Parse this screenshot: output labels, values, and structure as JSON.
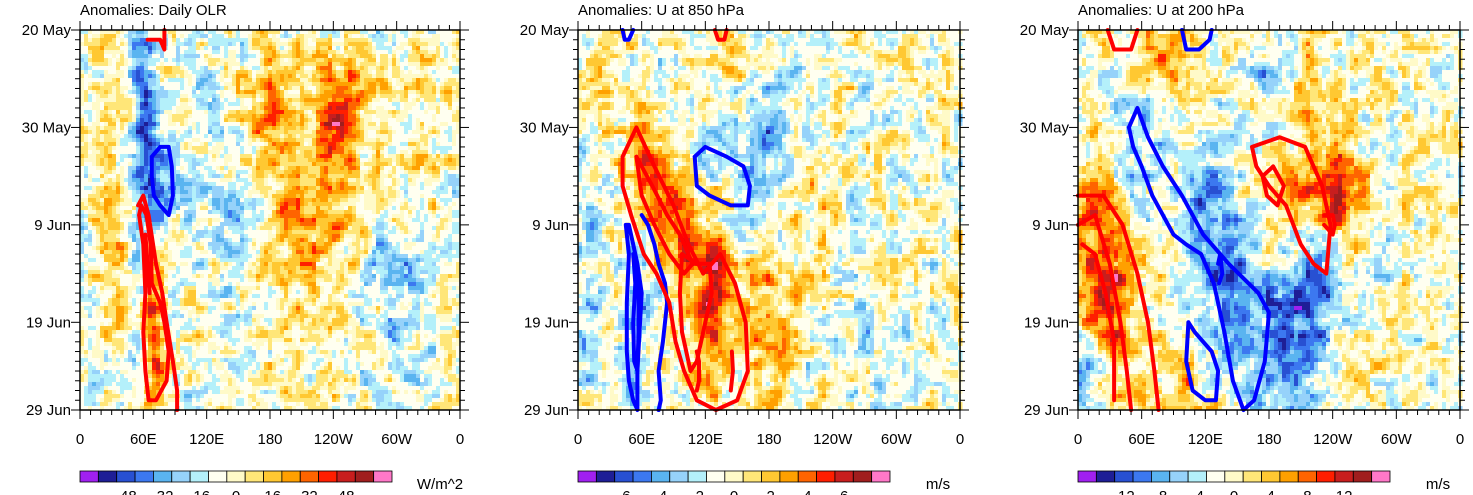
{
  "chart_data": [
    {
      "type": "heatmap",
      "title": "Anomalies: Daily OLR",
      "x_tick_labels": [
        "0",
        "60E",
        "120E",
        "180",
        "120W",
        "60W",
        "0"
      ],
      "y_tick_labels": [
        "20 May",
        "30 May",
        "9 Jun",
        "19 Jun",
        "29 Jun"
      ],
      "y_ticks_day": [
        0,
        10,
        20,
        30,
        39
      ],
      "colorbar": {
        "labels": [
          "-48",
          "-32",
          "-16",
          "0",
          "16",
          "32",
          "48"
        ],
        "units": "W/m^2",
        "max_value": 64
      },
      "contours": [
        {
          "color": "red",
          "points": [
            [
              64,
              1
            ],
            [
              76,
              1
            ],
            [
              80,
              2
            ],
            [
              80,
              0
            ]
          ]
        },
        {
          "color": "red",
          "points": [
            [
              55,
              18
            ],
            [
              60,
              17
            ],
            [
              65,
              19
            ],
            [
              72,
              24
            ],
            [
              78,
              27
            ],
            [
              82,
              30
            ],
            [
              88,
              34
            ],
            [
              92,
              37
            ],
            [
              92,
              39
            ]
          ]
        },
        {
          "color": "red",
          "points": [
            [
              56,
              19
            ],
            [
              60,
              22
            ],
            [
              62,
              27
            ],
            [
              60,
              31
            ],
            [
              62,
              35
            ],
            [
              65,
              38
            ],
            [
              72,
              38
            ],
            [
              82,
              36
            ],
            [
              84,
              33
            ],
            [
              80,
              30
            ],
            [
              76,
              28
            ],
            [
              72,
              27
            ],
            [
              68,
              26
            ],
            [
              67,
              22
            ],
            [
              63,
              19
            ],
            [
              58,
              18
            ],
            [
              56,
              19
            ]
          ]
        },
        {
          "color": "red",
          "points": [
            [
              62,
              21
            ],
            [
              64,
              24
            ],
            [
              66,
              27
            ],
            [
              64,
              25
            ],
            [
              62,
              21
            ]
          ]
        },
        {
          "color": "blue",
          "points": [
            [
              68,
              13
            ],
            [
              76,
              12
            ],
            [
              84,
              12
            ],
            [
              87,
              14
            ],
            [
              88,
              17
            ],
            [
              84,
              19
            ],
            [
              76,
              18
            ],
            [
              70,
              17
            ],
            [
              68,
              15
            ],
            [
              68,
              13
            ]
          ]
        }
      ]
    },
    {
      "type": "heatmap",
      "title": "Anomalies: U at 850 hPa",
      "x_tick_labels": [
        "0",
        "60E",
        "120E",
        "180",
        "120W",
        "60W",
        "0"
      ],
      "y_tick_labels": [
        "20 May",
        "30 May",
        "9 Jun",
        "19 Jun",
        "29 Jun"
      ],
      "y_ticks_day": [
        0,
        10,
        20,
        30,
        39
      ],
      "colorbar": {
        "labels": [
          "-6",
          "-4",
          "-2",
          "0",
          "2",
          "4",
          "6"
        ],
        "units": "m/s",
        "max_value": 8
      },
      "contours": [
        {
          "color": "blue",
          "points": [
            [
              42,
              0
            ],
            [
              44,
              1
            ],
            [
              48,
              1
            ],
            [
              52,
              0
            ]
          ]
        },
        {
          "color": "red",
          "points": [
            [
              129,
              0
            ],
            [
              132,
              1
            ],
            [
              138,
              1
            ],
            [
              140,
              0
            ]
          ]
        },
        {
          "color": "blue",
          "points": [
            [
              60,
              19
            ],
            [
              66,
              20
            ],
            [
              72,
              22
            ],
            [
              76,
              24
            ],
            [
              82,
              26
            ],
            [
              84,
              28
            ],
            [
              80,
              32
            ],
            [
              76,
              35
            ],
            [
              78,
              38
            ],
            [
              76,
              39
            ]
          ]
        },
        {
          "color": "blue",
          "points": [
            [
              45,
              20
            ],
            [
              48,
              23
            ],
            [
              46,
              28
            ],
            [
              46,
              33
            ],
            [
              48,
              36
            ],
            [
              52,
              38
            ],
            [
              56,
              39
            ],
            [
              56,
              35
            ],
            [
              58,
              31
            ],
            [
              60,
              27
            ],
            [
              56,
              24
            ],
            [
              52,
              22
            ],
            [
              48,
              20
            ],
            [
              45,
              20
            ]
          ]
        },
        {
          "color": "blue",
          "points": [
            [
              52,
              23
            ],
            [
              54,
              26
            ],
            [
              52,
              30
            ],
            [
              53,
              34
            ],
            [
              56,
              35
            ],
            [
              57,
              31
            ],
            [
              57,
              27
            ],
            [
              55,
              24
            ],
            [
              52,
              23
            ]
          ]
        },
        {
          "color": "blue",
          "points": [
            [
              110,
              13
            ],
            [
              120,
              12
            ],
            [
              140,
              13
            ],
            [
              156,
              14
            ],
            [
              162,
              16
            ],
            [
              160,
              18
            ],
            [
              144,
              18
            ],
            [
              124,
              17
            ],
            [
              112,
              16
            ],
            [
              110,
              13
            ]
          ]
        },
        {
          "color": "red",
          "points": [
            [
              42,
              13
            ],
            [
              55,
              10
            ],
            [
              72,
              14
            ],
            [
              90,
              18
            ],
            [
              104,
              22
            ],
            [
              118,
              25
            ],
            [
              134,
              23
            ],
            [
              148,
              26
            ],
            [
              158,
              30
            ],
            [
              160,
              35
            ],
            [
              150,
              38
            ],
            [
              130,
              39
            ],
            [
              112,
              38
            ],
            [
              100,
              35
            ],
            [
              92,
              32
            ],
            [
              86,
              28
            ],
            [
              74,
              25
            ],
            [
              62,
              23
            ],
            [
              50,
              19
            ],
            [
              42,
              16
            ],
            [
              42,
              13
            ]
          ]
        },
        {
          "color": "red",
          "points": [
            [
              55,
              13
            ],
            [
              70,
              16
            ],
            [
              84,
              19
            ],
            [
              96,
              21
            ],
            [
              108,
              24
            ],
            [
              100,
              25
            ],
            [
              86,
              23
            ],
            [
              72,
              20
            ],
            [
              60,
              17
            ],
            [
              55,
              13
            ]
          ]
        },
        {
          "color": "red",
          "points": [
            [
              98,
              23
            ],
            [
              112,
              24
            ],
            [
              124,
              24
            ],
            [
              126,
              27
            ],
            [
              118,
              31
            ],
            [
              112,
              34
            ],
            [
              106,
              35
            ],
            [
              98,
              31
            ],
            [
              96,
              27
            ],
            [
              98,
              23
            ]
          ]
        },
        {
          "color": "red",
          "points": [
            [
              112,
              33
            ],
            [
              114,
              34
            ],
            [
              114,
              36
            ],
            [
              112,
              37
            ]
          ]
        },
        {
          "color": "red",
          "points": [
            [
              145,
              33
            ],
            [
              146,
              35
            ],
            [
              144,
              37
            ]
          ]
        }
      ]
    },
    {
      "type": "heatmap",
      "title": "Anomalies: U at 200 hPa",
      "x_tick_labels": [
        "0",
        "60E",
        "120E",
        "180",
        "120W",
        "60W",
        "0"
      ],
      "y_tick_labels": [
        "20 May",
        "30 May",
        "9 Jun",
        "19 Jun",
        "29 Jun"
      ],
      "y_ticks_day": [
        0,
        10,
        20,
        30,
        39
      ],
      "colorbar": {
        "labels": [
          "-12",
          "-8",
          "-4",
          "0",
          "4",
          "8",
          "12"
        ],
        "units": "m/s",
        "max_value": 16
      },
      "contours": [
        {
          "color": "red",
          "points": [
            [
              28,
              0
            ],
            [
              34,
              2
            ],
            [
              50,
              2
            ],
            [
              56,
              0
            ]
          ]
        },
        {
          "color": "blue",
          "points": [
            [
              98,
              0
            ],
            [
              102,
              2
            ],
            [
              114,
              2
            ],
            [
              124,
              1
            ],
            [
              126,
              0
            ]
          ]
        },
        {
          "color": "red",
          "points": [
            [
              0,
              17
            ],
            [
              24,
              17
            ],
            [
              42,
              20
            ],
            [
              56,
              25
            ],
            [
              66,
              30
            ],
            [
              72,
              35
            ],
            [
              76,
              39
            ]
          ]
        },
        {
          "color": "red",
          "points": [
            [
              0,
              20
            ],
            [
              16,
              19
            ],
            [
              30,
              24
            ],
            [
              40,
              30
            ],
            [
              46,
              35
            ],
            [
              50,
              39
            ]
          ]
        },
        {
          "color": "red",
          "points": [
            [
              4,
              22
            ],
            [
              16,
              23
            ],
            [
              26,
              27
            ],
            [
              34,
              32
            ],
            [
              34,
              38
            ]
          ]
        },
        {
          "color": "blue",
          "points": [
            [
              48,
              10
            ],
            [
              56,
              8
            ],
            [
              66,
              11
            ],
            [
              80,
              14
            ],
            [
              98,
              17
            ],
            [
              118,
              21
            ],
            [
              142,
              24
            ],
            [
              170,
              27
            ],
            [
              180,
              29
            ],
            [
              176,
              34
            ],
            [
              166,
              38
            ],
            [
              156,
              39
            ],
            [
              146,
              36
            ],
            [
              138,
              31
            ],
            [
              128,
              26
            ],
            [
              116,
              23
            ],
            [
              102,
              22
            ],
            [
              90,
              21
            ],
            [
              80,
              19
            ],
            [
              70,
              17
            ],
            [
              60,
              14
            ],
            [
              52,
              12
            ],
            [
              48,
              10
            ]
          ]
        },
        {
          "color": "blue",
          "points": [
            [
              104,
              30
            ],
            [
              110,
              31
            ],
            [
              118,
              32
            ],
            [
              126,
              33
            ],
            [
              132,
              35
            ],
            [
              130,
              38
            ],
            [
              120,
              38
            ],
            [
              108,
              37
            ],
            [
              102,
              34
            ],
            [
              104,
              30
            ]
          ]
        },
        {
          "color": "red",
          "points": [
            [
              164,
              12
            ],
            [
              190,
              11
            ],
            [
              214,
              12
            ],
            [
              230,
              16
            ],
            [
              238,
              20
            ],
            [
              234,
              25
            ],
            [
              222,
              24
            ],
            [
              210,
              22
            ],
            [
              196,
              18
            ],
            [
              180,
              16
            ],
            [
              168,
              14
            ],
            [
              164,
              12
            ]
          ]
        },
        {
          "color": "red",
          "points": [
            [
              174,
              15
            ],
            [
              184,
              14
            ],
            [
              194,
              16
            ],
            [
              188,
              18
            ],
            [
              178,
              17
            ],
            [
              174,
              15
            ]
          ]
        },
        {
          "color": "red",
          "points": [
            [
              232,
              19
            ],
            [
              240,
              19
            ],
            [
              242,
              20
            ],
            [
              240,
              21
            ],
            [
              232,
              20
            ]
          ]
        },
        {
          "color": "blue",
          "points": [
            [
              132,
              24
            ],
            [
              134,
              23
            ],
            [
              136,
              25
            ],
            [
              133,
              26
            ]
          ]
        }
      ]
    }
  ]
}
